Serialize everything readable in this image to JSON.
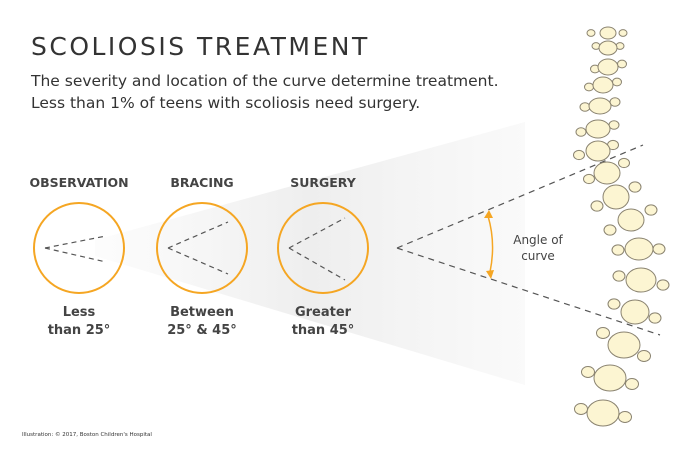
{
  "title": "SCOLIOSIS TREATMENT",
  "subtitle_lines": [
    "The severity and location of the curve determine treatment.",
    "Less than 1% of teens with scoliosis need surgery."
  ],
  "stages": [
    {
      "label": "OBSERVATION",
      "caption_line1": "Less",
      "caption_line2": "than 25°"
    },
    {
      "label": "BRACING",
      "caption_line1": "Between",
      "caption_line2": "25° & 45°"
    },
    {
      "label": "SURGERY",
      "caption_line1": "Greater",
      "caption_line2": "than 45°"
    }
  ],
  "angle_label_line1": "Angle of",
  "angle_label_line2": "curve",
  "credit": "Illustration: © 2017, Boston Children's Hospital",
  "colors": {
    "accent": "#F5A623",
    "vertebra_fill": "#FCF5D2",
    "vertebra_stroke": "#8a8370",
    "text": "#333333"
  }
}
